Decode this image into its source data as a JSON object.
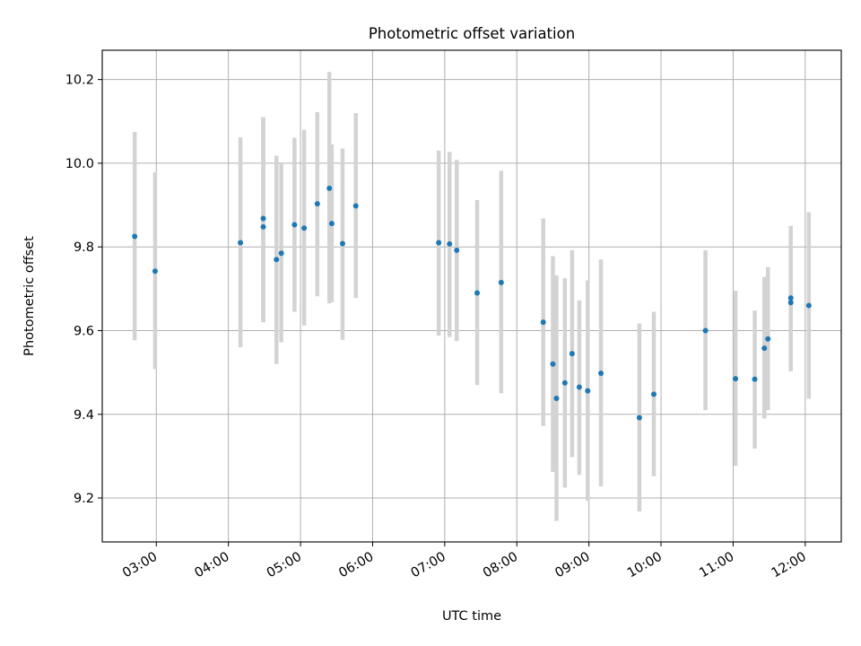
{
  "chart_data": {
    "type": "scatter",
    "title": "Photometric offset variation",
    "xlabel": "UTC time",
    "ylabel": "Photometric offset",
    "xlim": [
      "02:15",
      "12:30"
    ],
    "ylim": [
      9.095,
      10.27
    ],
    "x_ticks": [
      "03:00",
      "04:00",
      "05:00",
      "06:00",
      "07:00",
      "08:00",
      "09:00",
      "10:00",
      "11:00",
      "12:00"
    ],
    "y_ticks": [
      9.2,
      9.4,
      9.6,
      9.8,
      10.0,
      10.2
    ],
    "y_tick_labels": [
      "9.2",
      "9.4",
      "9.6",
      "9.8",
      "10.0",
      "10.2"
    ],
    "grid": true,
    "colors": {
      "point": "#1f77b4",
      "errorbar": "#d3d3d3",
      "grid": "#b0b0b0"
    },
    "points": [
      {
        "time": "02:42",
        "y": 9.825,
        "low": 9.577,
        "high": 10.075
      },
      {
        "time": "02:59",
        "y": 9.742,
        "low": 9.508,
        "high": 9.978
      },
      {
        "time": "04:10",
        "y": 9.81,
        "low": 9.56,
        "high": 10.062
      },
      {
        "time": "04:29",
        "y": 9.868,
        "low": 9.62,
        "high": 10.11
      },
      {
        "time": "04:29",
        "y": 9.848,
        "low": 9.62,
        "high": 10.11
      },
      {
        "time": "04:40",
        "y": 9.77,
        "low": 9.52,
        "high": 10.018
      },
      {
        "time": "04:44",
        "y": 9.785,
        "low": 9.572,
        "high": 10.0
      },
      {
        "time": "04:55",
        "y": 9.853,
        "low": 9.645,
        "high": 10.061
      },
      {
        "time": "05:03",
        "y": 9.845,
        "low": 9.612,
        "high": 10.08
      },
      {
        "time": "05:14",
        "y": 9.903,
        "low": 9.682,
        "high": 10.122
      },
      {
        "time": "05:24",
        "y": 9.94,
        "low": 9.665,
        "high": 10.218
      },
      {
        "time": "05:26",
        "y": 9.856,
        "low": 9.668,
        "high": 10.045
      },
      {
        "time": "05:35",
        "y": 9.808,
        "low": 9.578,
        "high": 10.035
      },
      {
        "time": "05:46",
        "y": 9.898,
        "low": 9.678,
        "high": 10.12
      },
      {
        "time": "06:55",
        "y": 9.81,
        "low": 9.588,
        "high": 10.03
      },
      {
        "time": "07:04",
        "y": 9.807,
        "low": 9.585,
        "high": 10.027
      },
      {
        "time": "07:10",
        "y": 9.792,
        "low": 9.575,
        "high": 10.008
      },
      {
        "time": "07:27",
        "y": 9.69,
        "low": 9.47,
        "high": 9.912
      },
      {
        "time": "07:47",
        "y": 9.715,
        "low": 9.45,
        "high": 9.982
      },
      {
        "time": "08:22",
        "y": 9.62,
        "low": 9.372,
        "high": 9.868
      },
      {
        "time": "08:30",
        "y": 9.52,
        "low": 9.262,
        "high": 9.778
      },
      {
        "time": "08:33",
        "y": 9.438,
        "low": 9.145,
        "high": 9.732
      },
      {
        "time": "08:40",
        "y": 9.475,
        "low": 9.225,
        "high": 9.725
      },
      {
        "time": "08:46",
        "y": 9.545,
        "low": 9.298,
        "high": 9.792
      },
      {
        "time": "08:52",
        "y": 9.465,
        "low": 9.255,
        "high": 9.672
      },
      {
        "time": "08:59",
        "y": 9.456,
        "low": 9.193,
        "high": 9.72
      },
      {
        "time": "09:10",
        "y": 9.498,
        "low": 9.228,
        "high": 9.77
      },
      {
        "time": "09:42",
        "y": 9.392,
        "low": 9.168,
        "high": 9.617
      },
      {
        "time": "09:54",
        "y": 9.448,
        "low": 9.252,
        "high": 9.645
      },
      {
        "time": "10:37",
        "y": 9.6,
        "low": 9.41,
        "high": 9.792
      },
      {
        "time": "11:02",
        "y": 9.485,
        "low": 9.277,
        "high": 9.695
      },
      {
        "time": "11:18",
        "y": 9.484,
        "low": 9.318,
        "high": 9.648
      },
      {
        "time": "11:26",
        "y": 9.558,
        "low": 9.39,
        "high": 9.728
      },
      {
        "time": "11:29",
        "y": 9.58,
        "low": 9.41,
        "high": 9.752
      },
      {
        "time": "11:48",
        "y": 9.678,
        "low": 9.503,
        "high": 9.85
      },
      {
        "time": "11:48",
        "y": 9.667,
        "low": 9.503,
        "high": 9.85
      },
      {
        "time": "12:03",
        "y": 9.66,
        "low": 9.437,
        "high": 9.883
      }
    ]
  }
}
